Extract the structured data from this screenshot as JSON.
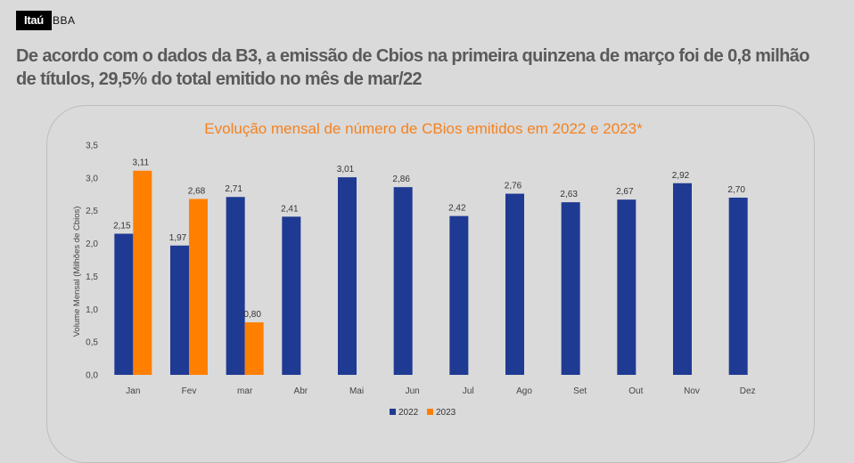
{
  "brand": {
    "name": "Itaú",
    "sub": "BBA"
  },
  "headline": "De acordo com  o dados da B3, a emissão de Cbios  na primeira quinzena de março foi de 0,8  milhão de títulos, 29,5% do total emitido no mês de mar/22",
  "colors": {
    "series_2022": "#1f3a93",
    "series_2023": "#ff7f00",
    "title": "#f58220"
  },
  "chart_data": {
    "type": "bar",
    "title": "Evolução mensal de número de CBios emitidos em 2022 e 2023*",
    "ylabel": "Volume Mensal (Milhões de  Cbios)",
    "xlabel": "",
    "ylim": [
      0,
      3.5
    ],
    "yticks": [
      "0,0",
      "0,5",
      "1,0",
      "1,5",
      "2,0",
      "2,5",
      "3,0",
      "3,5"
    ],
    "categories": [
      "Jan",
      "Fev",
      "mar",
      "Abr",
      "Mai",
      "Jun",
      "Jul",
      "Ago",
      "Set",
      "Out",
      "Nov",
      "Dez"
    ],
    "series": [
      {
        "name": "2022",
        "values": [
          2.15,
          1.97,
          2.71,
          2.41,
          3.01,
          2.86,
          2.42,
          2.76,
          2.63,
          2.67,
          2.92,
          2.7
        ],
        "labels": [
          "2,15",
          "1,97",
          "2,71",
          "2,41",
          "3,01",
          "2,86",
          "2,42",
          "2,76",
          "2,63",
          "2,67",
          "2,92",
          "2,70"
        ]
      },
      {
        "name": "2023",
        "values": [
          3.11,
          2.68,
          0.8,
          null,
          null,
          null,
          null,
          null,
          null,
          null,
          null,
          null
        ],
        "labels": [
          "3,11",
          "2,68",
          "0,80",
          null,
          null,
          null,
          null,
          null,
          null,
          null,
          null,
          null
        ]
      }
    ],
    "legend": "bottom-center",
    "grid": false
  }
}
